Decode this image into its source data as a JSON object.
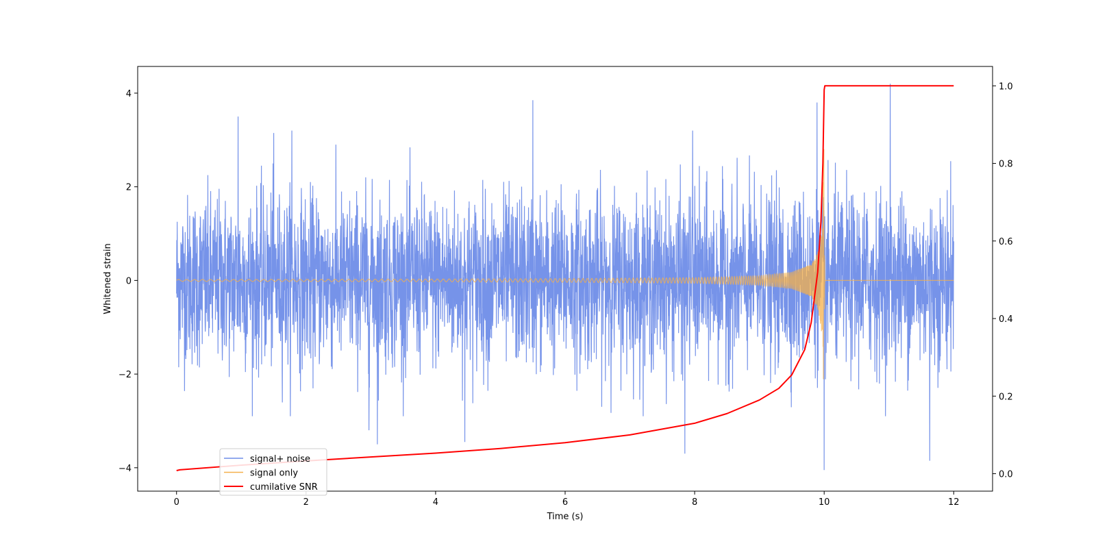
{
  "chart_data": {
    "type": "line",
    "title": "",
    "xlabel": "Time (s)",
    "ylabel": "Whitened strain",
    "ylabel_right": "",
    "xlim": [
      -0.6,
      12.6
    ],
    "ylim": [
      -4.5,
      4.57
    ],
    "ylim_right": [
      -0.045,
      1.05
    ],
    "x_ticks": [
      0,
      2,
      4,
      6,
      8,
      10,
      12
    ],
    "x_tick_labels": [
      "0",
      "2",
      "4",
      "6",
      "8",
      "10",
      "12"
    ],
    "y_ticks": [
      -4,
      -2,
      0,
      2,
      4
    ],
    "y_tick_labels": [
      "−4",
      "−2",
      "0",
      "2",
      "4"
    ],
    "y_right_ticks": [
      0.0,
      0.2,
      0.4,
      0.6,
      0.8,
      1.0
    ],
    "y_right_tick_labels": [
      "0.0",
      "0.2",
      "0.4",
      "0.6",
      "0.8",
      "1.0"
    ],
    "grid": false,
    "legend": {
      "placement": "lower-left",
      "entries": [
        "signal+ noise",
        "signal only",
        "cumilative SNR"
      ]
    },
    "series": [
      {
        "name": "signal+ noise",
        "axis": "left",
        "color": "#6f8de8",
        "description": "white noise, std ~0.9, spanning 0 to 12 s; extreme spikes shown",
        "x": [
          0.95,
          1.5,
          1.78,
          2.97,
          3.1,
          4.45,
          5.5,
          7.85,
          7.97,
          9.89,
          10.0,
          11.02,
          11.63
        ],
        "y": [
          3.5,
          3.15,
          3.2,
          -3.2,
          -3.5,
          -3.45,
          3.85,
          -3.7,
          3.2,
          3.8,
          -4.05,
          4.2,
          -3.85
        ]
      },
      {
        "name": "signal only",
        "axis": "left",
        "color": "#f5b04a",
        "description": "chirp with growing amplitude, merger at 10 s then zero",
        "x": [
          0,
          2,
          4,
          6,
          8,
          9,
          9.5,
          9.8,
          9.9,
          9.97,
          10.0,
          10.01,
          12
        ],
        "amplitude": [
          0.02,
          0.025,
          0.03,
          0.04,
          0.06,
          0.1,
          0.18,
          0.35,
          0.6,
          1.2,
          3.2,
          0,
          0
        ]
      },
      {
        "name": "cumilative SNR",
        "axis": "right",
        "color": "#ff0000",
        "x": [
          0,
          0.05,
          1,
          2,
          3,
          4,
          5,
          6,
          7,
          8,
          8.5,
          9,
          9.3,
          9.5,
          9.7,
          9.8,
          9.9,
          9.95,
          9.98,
          10.0,
          10.01,
          12
        ],
        "y": [
          0.008,
          0.01,
          0.022,
          0.033,
          0.043,
          0.053,
          0.065,
          0.08,
          0.1,
          0.13,
          0.155,
          0.19,
          0.22,
          0.255,
          0.32,
          0.39,
          0.52,
          0.65,
          0.8,
          0.99,
          1.0,
          1.0
        ]
      }
    ]
  }
}
